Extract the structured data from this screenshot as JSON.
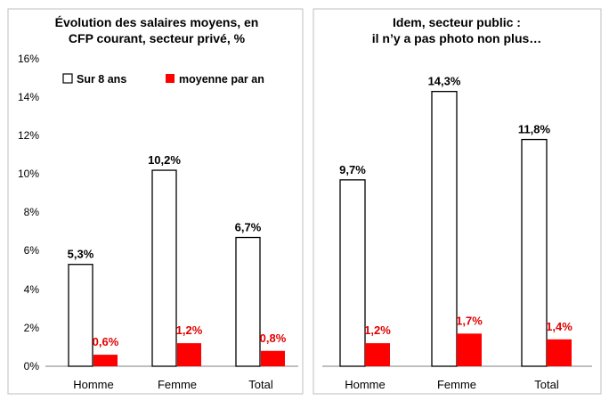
{
  "colors": {
    "series_total_fill": "#ffffff",
    "series_total_stroke": "#000000",
    "series_avg_fill": "#ff0000",
    "avg_label": "#e10000",
    "panel_border": "#bfbfbf"
  },
  "chart_data": [
    {
      "type": "bar",
      "title_lines": [
        "Évolution des salaires moyens, en",
        "CFP courant, secteur privé, %"
      ],
      "categories": [
        "Homme",
        "Femme",
        "Total"
      ],
      "series": [
        {
          "name": "Sur 8 ans",
          "values": [
            5.3,
            10.2,
            6.7
          ],
          "labels": [
            "5,3%",
            "10,2%",
            "6,7%"
          ]
        },
        {
          "name": "moyenne par an",
          "values": [
            0.6,
            1.2,
            0.8
          ],
          "labels": [
            "0,6%",
            "1,2%",
            "0,8%"
          ]
        }
      ],
      "yticks": [
        "0%",
        "2%",
        "4%",
        "6%",
        "8%",
        "10%",
        "12%",
        "14%",
        "16%"
      ],
      "ylim": [
        0,
        16
      ],
      "legend": "top",
      "grid": false
    },
    {
      "type": "bar",
      "title_lines": [
        "Idem, secteur public :",
        "il n’y a pas photo non plus…"
      ],
      "categories": [
        "Homme",
        "Femme",
        "Total"
      ],
      "series": [
        {
          "values": [
            9.7,
            14.3,
            11.8
          ],
          "labels": [
            "9,7%",
            "14,3%",
            "11,8%"
          ]
        },
        {
          "values": [
            1.2,
            1.7,
            1.4
          ],
          "labels": [
            "1,2%",
            "1,7%",
            "1,4%"
          ]
        }
      ],
      "ylim": [
        0,
        16
      ],
      "grid": false
    }
  ]
}
